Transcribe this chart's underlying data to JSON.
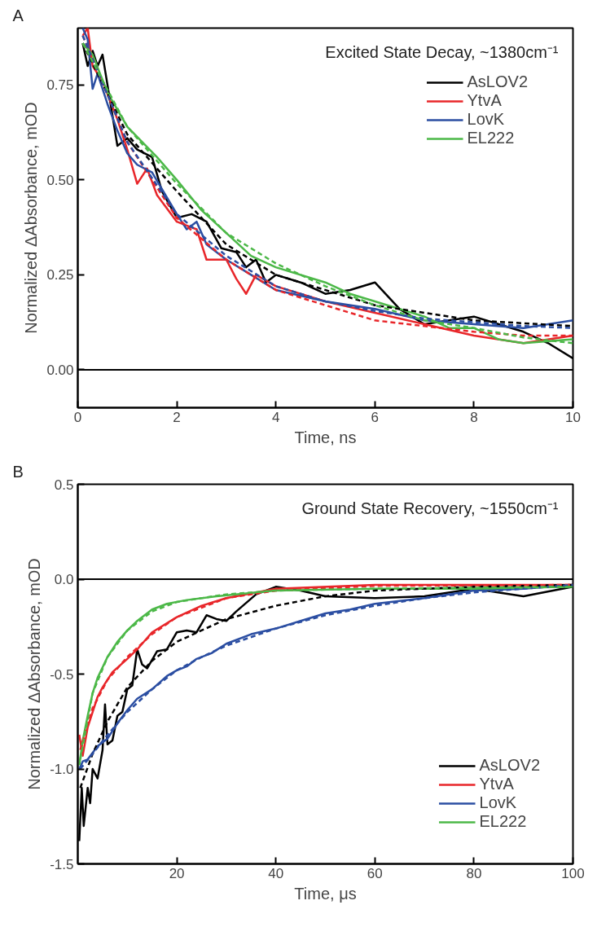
{
  "chart_data": [
    {
      "type": "line",
      "title": "Excited State Decay, ~1380cm⁻¹",
      "xlabel": "Time, ns",
      "ylabel": "Normalized ΔAbsorbance, mOD",
      "annotations": [
        "A"
      ],
      "xlim": [
        0,
        10
      ],
      "ylim": [
        -0.1,
        0.9
      ],
      "xticks": [
        0,
        2,
        4,
        6,
        8,
        10
      ],
      "yticks": [
        {
          "value": 0,
          "label": "0.00"
        },
        {
          "value": 0.25,
          "label": "0.25"
        },
        {
          "value": 0.5,
          "label": "0.50"
        },
        {
          "value": 0.75,
          "label": "0.75"
        }
      ],
      "grid": false,
      "legend": "top right",
      "line_style": "solid",
      "ref_lines": [
        {
          "axis": "y",
          "value": 0,
          "color": "#000000"
        }
      ],
      "series": [
        {
          "name": "AsLOV2",
          "color": "#000000",
          "x": [
            0.1,
            0.2,
            0.3,
            0.4,
            0.5,
            0.6,
            0.8,
            1.0,
            1.2,
            1.5,
            1.7,
            2.0,
            2.3,
            2.6,
            2.9,
            3.2,
            3.4,
            3.6,
            3.8,
            4.0,
            4.5,
            5.0,
            5.5,
            6.0,
            6.5,
            7.0,
            7.5,
            8.0,
            8.5,
            9.0,
            9.5,
            10
          ],
          "values": [
            0.86,
            0.8,
            0.84,
            0.8,
            0.83,
            0.75,
            0.59,
            0.61,
            0.58,
            0.56,
            0.47,
            0.4,
            0.41,
            0.39,
            0.32,
            0.31,
            0.27,
            0.29,
            0.23,
            0.25,
            0.23,
            0.2,
            0.21,
            0.23,
            0.16,
            0.12,
            0.13,
            0.14,
            0.12,
            0.1,
            0.07,
            0.03
          ]
        },
        {
          "name": "YtvA",
          "color": "#e8262a",
          "x": [
            0.1,
            0.2,
            0.3,
            0.5,
            0.8,
            1.0,
            1.2,
            1.4,
            1.6,
            2.0,
            2.2,
            2.4,
            2.6,
            2.8,
            3.0,
            3.2,
            3.4,
            3.6,
            4.0,
            5,
            6,
            7,
            8,
            9,
            10
          ],
          "values": [
            0.88,
            0.9,
            0.8,
            0.76,
            0.66,
            0.58,
            0.49,
            0.53,
            0.46,
            0.39,
            0.38,
            0.37,
            0.29,
            0.29,
            0.29,
            0.24,
            0.2,
            0.25,
            0.22,
            0.18,
            0.15,
            0.12,
            0.09,
            0.07,
            0.09
          ]
        },
        {
          "name": "LovK",
          "color": "#2b4ea2",
          "x": [
            0.1,
            0.2,
            0.3,
            0.4,
            0.6,
            0.8,
            1.0,
            1.2,
            1.5,
            2.0,
            2.2,
            2.4,
            2.6,
            3,
            3.5,
            4,
            5,
            6,
            7,
            8,
            9,
            10
          ],
          "values": [
            0.9,
            0.87,
            0.74,
            0.78,
            0.7,
            0.63,
            0.57,
            0.54,
            0.52,
            0.41,
            0.37,
            0.39,
            0.33,
            0.29,
            0.25,
            0.21,
            0.18,
            0.16,
            0.13,
            0.12,
            0.11,
            0.13
          ]
        },
        {
          "name": "EL222",
          "color": "#4cb848",
          "x": [
            0.1,
            0.3,
            0.6,
            1.0,
            1.6,
            2.0,
            2.5,
            3.0,
            3.5,
            4.0,
            5,
            5.5,
            6,
            7,
            7.5,
            8,
            8.5,
            9,
            10
          ],
          "values": [
            0.86,
            0.83,
            0.73,
            0.64,
            0.56,
            0.5,
            0.42,
            0.36,
            0.3,
            0.27,
            0.23,
            0.2,
            0.18,
            0.14,
            0.11,
            0.11,
            0.08,
            0.07,
            0.08
          ]
        },
        {
          "color": "#000000",
          "line_style": "dashed",
          "x": [
            0.1,
            1,
            2,
            3,
            4,
            6,
            8,
            10
          ],
          "values": [
            0.86,
            0.62,
            0.47,
            0.33,
            0.25,
            0.17,
            0.13,
            0.115
          ]
        },
        {
          "color": "#e8262a",
          "line_style": "dashed",
          "x": [
            0.1,
            1,
            2,
            3,
            4,
            5,
            6,
            7,
            8,
            9,
            10
          ],
          "values": [
            0.88,
            0.6,
            0.4,
            0.29,
            0.21,
            0.17,
            0.13,
            0.115,
            0.1,
            0.09,
            0.09
          ]
        },
        {
          "color": "#2b4ea2",
          "line_style": "dashed",
          "x": [
            0.1,
            1,
            2,
            3,
            4,
            5,
            6,
            7,
            8,
            9,
            10
          ],
          "values": [
            0.88,
            0.6,
            0.41,
            0.3,
            0.22,
            0.18,
            0.155,
            0.135,
            0.125,
            0.115,
            0.11
          ]
        },
        {
          "color": "#4cb848",
          "line_style": "dashed",
          "x": [
            0.1,
            1,
            2,
            3,
            4,
            5,
            6,
            7,
            8,
            9,
            10
          ],
          "values": [
            0.86,
            0.64,
            0.49,
            0.36,
            0.28,
            0.22,
            0.17,
            0.13,
            0.11,
            0.085,
            0.07
          ]
        }
      ]
    },
    {
      "type": "line",
      "title": "Ground State Recovery, ~1550cm⁻¹",
      "xlabel": "Time, μs",
      "ylabel": "Normalized ΔAbsorbance, mOD",
      "annotations": [
        "B"
      ],
      "xlim": [
        0,
        100
      ],
      "ylim": [
        -1.5,
        0.5
      ],
      "xticks": [
        20,
        40,
        60,
        80,
        100
      ],
      "yticks": [
        {
          "value": -1.5,
          "label": "-1.5"
        },
        {
          "value": -1,
          "label": "-1.0"
        },
        {
          "value": -0.5,
          "label": "-0.5"
        },
        {
          "value": 0,
          "label": "0.0"
        },
        {
          "value": 0.5,
          "label": "0.5"
        }
      ],
      "grid": false,
      "legend": "bottom right",
      "line_style": "solid",
      "ref_lines": [
        {
          "axis": "y",
          "value": 0,
          "color": "#000000"
        }
      ],
      "series": [
        {
          "name": "AsLOV2",
          "color": "#000000",
          "x": [
            0.3,
            0.8,
            1.2,
            2,
            2.5,
            3,
            4,
            5,
            5.5,
            6,
            7,
            8,
            9,
            10,
            11,
            12,
            13,
            14,
            16,
            18,
            20,
            22,
            24,
            26,
            28,
            30,
            32,
            36,
            40,
            45,
            50,
            60,
            70,
            80,
            90,
            100
          ],
          "values": [
            -1.38,
            -1.1,
            -1.3,
            -1.1,
            -1.18,
            -1.0,
            -1.05,
            -0.9,
            -0.66,
            -0.87,
            -0.85,
            -0.72,
            -0.7,
            -0.58,
            -0.56,
            -0.37,
            -0.45,
            -0.47,
            -0.38,
            -0.37,
            -0.28,
            -0.27,
            -0.28,
            -0.19,
            -0.21,
            -0.22,
            -0.17,
            -0.08,
            -0.04,
            -0.06,
            -0.09,
            -0.1,
            -0.09,
            -0.05,
            -0.09,
            -0.04
          ]
        },
        {
          "name": "YtvA",
          "color": "#e8262a",
          "x": [
            0.3,
            1,
            2,
            3,
            4,
            5,
            7,
            10,
            12,
            15,
            20,
            25,
            30,
            40,
            60,
            80,
            100
          ],
          "values": [
            -0.82,
            -0.93,
            -0.78,
            -0.7,
            -0.62,
            -0.57,
            -0.49,
            -0.42,
            -0.37,
            -0.28,
            -0.2,
            -0.14,
            -0.1,
            -0.05,
            -0.03,
            -0.03,
            -0.03
          ]
        },
        {
          "name": "LovK",
          "color": "#2b4ea2",
          "x": [
            0.3,
            1,
            2,
            4,
            6,
            8,
            10,
            12,
            15,
            18,
            20,
            22,
            24,
            27,
            30,
            35,
            40,
            45,
            50,
            55,
            60,
            70,
            80,
            90,
            100
          ],
          "values": [
            -1.0,
            -0.96,
            -0.95,
            -0.88,
            -0.84,
            -0.76,
            -0.69,
            -0.63,
            -0.58,
            -0.51,
            -0.48,
            -0.46,
            -0.42,
            -0.39,
            -0.34,
            -0.29,
            -0.26,
            -0.22,
            -0.18,
            -0.16,
            -0.13,
            -0.1,
            -0.06,
            -0.05,
            -0.03
          ]
        },
        {
          "name": "EL222",
          "color": "#4cb848",
          "x": [
            0.3,
            1,
            2,
            3,
            4,
            6,
            8,
            10,
            12,
            15,
            18,
            22,
            28,
            40,
            60,
            80,
            100
          ],
          "values": [
            -0.98,
            -0.85,
            -0.72,
            -0.6,
            -0.52,
            -0.41,
            -0.33,
            -0.27,
            -0.22,
            -0.16,
            -0.13,
            -0.11,
            -0.09,
            -0.06,
            -0.05,
            -0.05,
            -0.04
          ]
        },
        {
          "color": "#000000",
          "line_style": "dashed",
          "x": [
            0.5,
            3,
            6,
            10,
            15,
            20,
            30,
            40,
            50,
            60,
            80,
            100
          ],
          "values": [
            -1.1,
            -0.92,
            -0.75,
            -0.57,
            -0.43,
            -0.33,
            -0.21,
            -0.14,
            -0.09,
            -0.06,
            -0.04,
            -0.03
          ]
        },
        {
          "color": "#e8262a",
          "line_style": "dashed",
          "x": [
            0.5,
            3,
            6,
            10,
            15,
            20,
            30,
            40,
            60,
            100
          ],
          "values": [
            -0.9,
            -0.68,
            -0.53,
            -0.41,
            -0.29,
            -0.2,
            -0.1,
            -0.06,
            -0.035,
            -0.03
          ]
        },
        {
          "color": "#2b4ea2",
          "line_style": "dashed",
          "x": [
            0.5,
            3,
            6,
            10,
            15,
            20,
            25,
            30,
            40,
            50,
            60,
            70,
            80,
            100
          ],
          "values": [
            -1.0,
            -0.92,
            -0.82,
            -0.7,
            -0.58,
            -0.48,
            -0.41,
            -0.35,
            -0.26,
            -0.19,
            -0.14,
            -0.1,
            -0.07,
            -0.03
          ]
        },
        {
          "color": "#4cb848",
          "line_style": "dashed",
          "x": [
            0.5,
            3,
            6,
            10,
            15,
            20,
            30,
            40,
            60,
            100
          ],
          "values": [
            -0.95,
            -0.6,
            -0.41,
            -0.27,
            -0.17,
            -0.12,
            -0.08,
            -0.06,
            -0.05,
            -0.04
          ]
        }
      ]
    }
  ]
}
